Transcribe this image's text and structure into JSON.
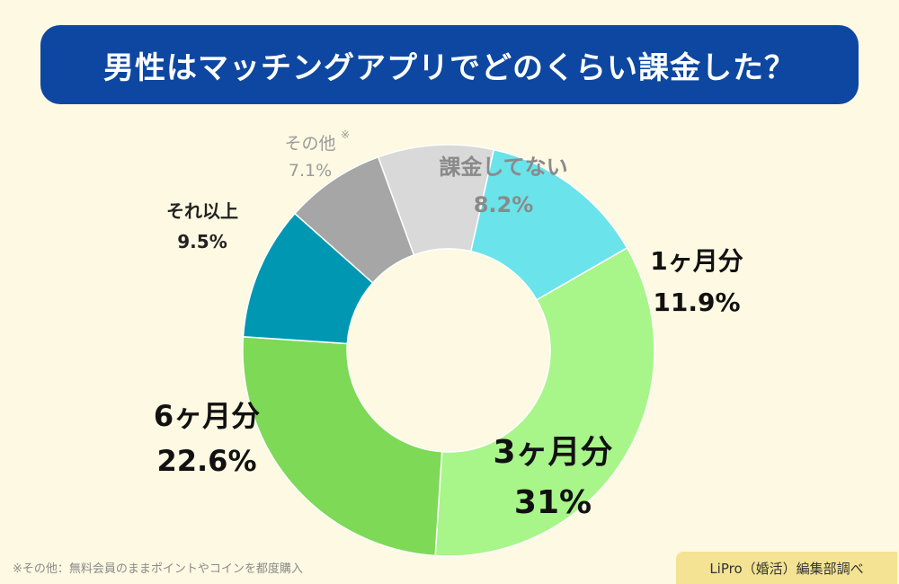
{
  "header": {
    "title": "男性はマッチングアプリでどのくらい課金した？"
  },
  "chart_data": {
    "type": "pie",
    "variant": "donut",
    "title": "男性はマッチングアプリでどのくらい課金した？",
    "slices": [
      {
        "label": "課金してない",
        "value": 8.2,
        "value_label": "8.2%",
        "color": "#d9d9d9"
      },
      {
        "label": "1ヶ月分",
        "value": 11.9,
        "value_label": "11.9%",
        "color": "#6ae3ea"
      },
      {
        "label": "3ヶ月分",
        "value": 31,
        "value_label": "31%",
        "color": "#a8f58a"
      },
      {
        "label": "6ヶ月分",
        "value": 22.6,
        "value_label": "22.6%",
        "color": "#7dd956"
      },
      {
        "label": "それ以上",
        "value": 9.5,
        "value_label": "9.5%",
        "color": "#0097b2"
      },
      {
        "label": "その他",
        "value": 7.1,
        "value_label": "7.1%",
        "color": "#a6a6a6",
        "note_mark": "※"
      }
    ]
  },
  "footnote": "※その他：無料会員のままポイントやコインを都度購入",
  "source": "LiPro（婚活）編集部調べ"
}
